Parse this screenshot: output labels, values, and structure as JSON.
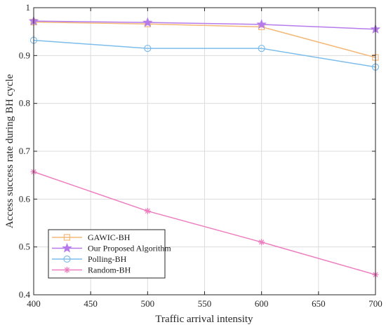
{
  "chart_data": {
    "type": "line",
    "title": "",
    "xlabel": "Traffic arrival intensity",
    "ylabel": "Access success rate during BH cycle",
    "xlim": [
      400,
      700
    ],
    "ylim": [
      0.4,
      1.0
    ],
    "xticks": [
      400,
      450,
      500,
      550,
      600,
      650,
      700
    ],
    "yticks": [
      0.4,
      0.5,
      0.6,
      0.7,
      0.8,
      0.9,
      1.0
    ],
    "ytick_labels": [
      "0.4",
      "0.5",
      "0.6",
      "0.7",
      "0.8",
      "0.9",
      "1"
    ],
    "grid": true,
    "legend_position": "bottom-left",
    "x": [
      400,
      500,
      600,
      700
    ],
    "series": [
      {
        "name": "GAWIC-BH",
        "values": [
          0.97,
          0.966,
          0.96,
          0.896
        ],
        "color": "#F4B878",
        "marker": "square"
      },
      {
        "name": "Our Proposed Algorithm",
        "values": [
          0.972,
          0.969,
          0.965,
          0.955
        ],
        "color": "#B57BEB",
        "marker": "star"
      },
      {
        "name": "Polling-BH",
        "values": [
          0.932,
          0.915,
          0.915,
          0.876
        ],
        "color": "#7DBDEB",
        "marker": "circle"
      },
      {
        "name": "Random-BH",
        "values": [
          0.657,
          0.575,
          0.51,
          0.442
        ],
        "color": "#EE7EBF",
        "marker": "asterisk"
      }
    ]
  }
}
